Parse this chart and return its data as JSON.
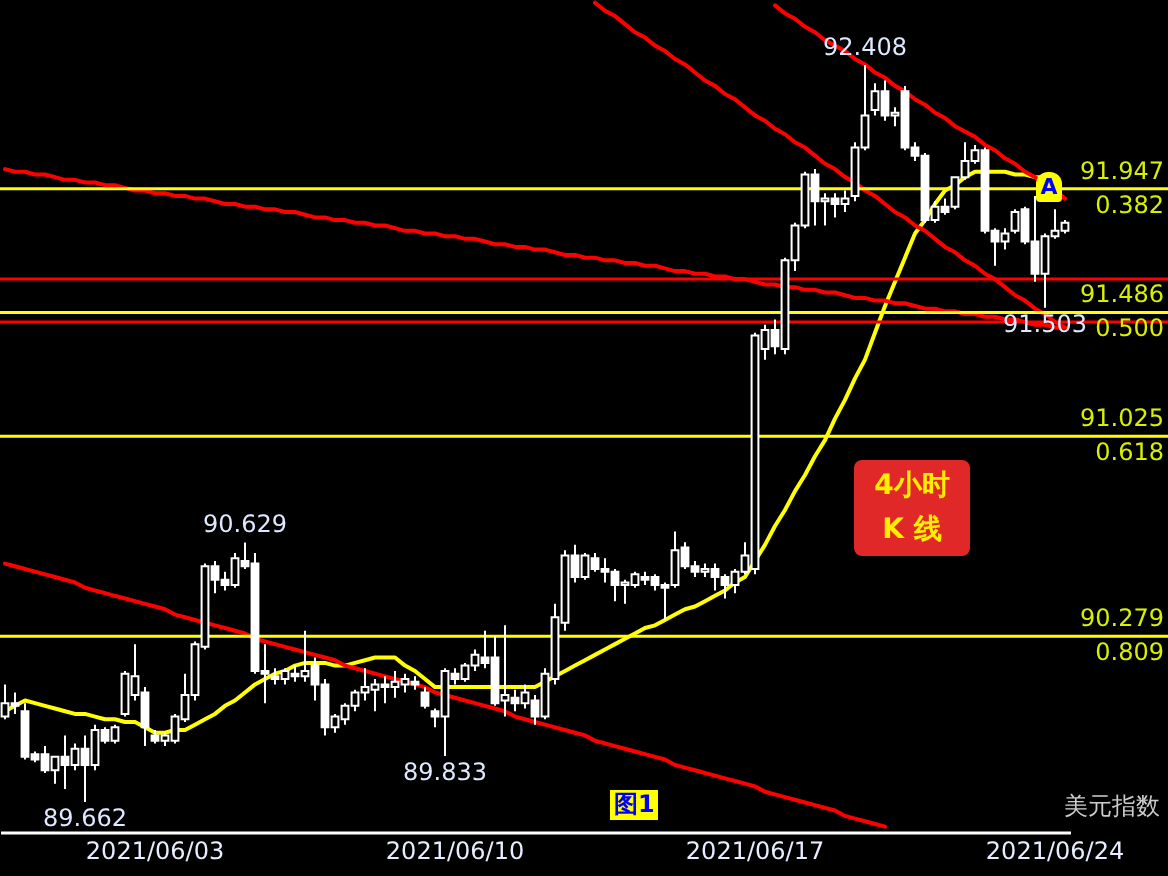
{
  "chart_data": {
    "type": "candlestick",
    "categories": [
      null,
      null,
      null,
      null,
      null,
      null,
      null,
      null,
      null,
      null,
      null,
      null,
      null,
      null,
      null,
      "2021/06/03",
      null,
      null,
      null,
      null,
      null,
      null,
      null,
      null,
      null,
      null,
      null,
      null,
      null,
      null,
      null,
      null,
      null,
      null,
      null,
      null,
      null,
      null,
      null,
      null,
      null,
      null,
      null,
      null,
      null,
      "2021/06/10",
      null,
      null,
      null,
      null,
      null,
      null,
      null,
      null,
      null,
      null,
      null,
      null,
      null,
      null,
      null,
      null,
      null,
      null,
      null,
      null,
      null,
      null,
      null,
      null,
      null,
      null,
      null,
      null,
      null,
      "2021/06/17",
      null,
      null,
      null,
      null,
      null,
      null,
      null,
      null,
      null,
      null,
      null,
      null,
      null,
      null,
      null,
      null,
      null,
      null,
      null,
      null,
      null,
      null,
      null,
      null,
      null,
      null,
      null,
      null,
      null,
      "2021/06/24",
      null
    ],
    "ohlc": [
      [
        89.98,
        90.1,
        89.97,
        90.03
      ],
      [
        90.03,
        90.07,
        89.99,
        90.02
      ],
      [
        90.0,
        90.03,
        89.82,
        89.83
      ],
      [
        89.84,
        89.85,
        89.81,
        89.82
      ],
      [
        89.84,
        89.87,
        89.77,
        89.78
      ],
      [
        89.78,
        89.83,
        89.73,
        89.83
      ],
      [
        89.83,
        89.91,
        89.71,
        89.8
      ],
      [
        89.8,
        89.88,
        89.78,
        89.86
      ],
      [
        89.86,
        89.91,
        89.662,
        89.8
      ],
      [
        89.8,
        89.95,
        89.78,
        89.93
      ],
      [
        89.93,
        89.94,
        89.88,
        89.89
      ],
      [
        89.89,
        89.95,
        89.88,
        89.94
      ],
      [
        89.99,
        90.15,
        89.98,
        90.14
      ],
      [
        90.06,
        90.25,
        90.04,
        90.13
      ],
      [
        90.07,
        90.09,
        89.87,
        89.94
      ],
      [
        89.91,
        89.93,
        89.88,
        89.89
      ],
      [
        89.89,
        89.92,
        89.87,
        89.91
      ],
      [
        89.89,
        89.99,
        89.88,
        89.98
      ],
      [
        89.97,
        90.14,
        89.96,
        90.06
      ],
      [
        90.06,
        90.26,
        90.04,
        90.25
      ],
      [
        90.24,
        90.55,
        90.23,
        90.54
      ],
      [
        90.54,
        90.56,
        90.44,
        90.49
      ],
      [
        90.49,
        90.52,
        90.45,
        90.47
      ],
      [
        90.47,
        90.59,
        90.46,
        90.57
      ],
      [
        90.56,
        90.629,
        90.53,
        90.54
      ],
      [
        90.55,
        90.59,
        90.14,
        90.15
      ],
      [
        90.15,
        90.25,
        90.03,
        90.14
      ],
      [
        90.13,
        90.16,
        90.1,
        90.12
      ],
      [
        90.12,
        90.16,
        90.1,
        90.15
      ],
      [
        90.14,
        90.17,
        90.11,
        90.13
      ],
      [
        90.13,
        90.3,
        90.11,
        90.15
      ],
      [
        90.17,
        90.2,
        90.04,
        90.1
      ],
      [
        90.1,
        90.12,
        89.91,
        89.94
      ],
      [
        89.94,
        89.99,
        89.92,
        89.98
      ],
      [
        89.97,
        90.03,
        89.95,
        90.02
      ],
      [
        90.02,
        90.08,
        90.0,
        90.07
      ],
      [
        90.07,
        90.16,
        90.04,
        90.09
      ],
      [
        90.08,
        90.12,
        90.0,
        90.1
      ],
      [
        90.1,
        90.13,
        90.03,
        90.09
      ],
      [
        90.09,
        90.15,
        90.05,
        90.11
      ],
      [
        90.1,
        90.14,
        90.07,
        90.12
      ],
      [
        90.11,
        90.13,
        90.08,
        90.1
      ],
      [
        90.07,
        90.09,
        90.01,
        90.02
      ],
      [
        90.0,
        90.01,
        89.94,
        89.98
      ],
      [
        89.98,
        90.16,
        89.833,
        90.15
      ],
      [
        90.14,
        90.16,
        90.1,
        90.12
      ],
      [
        90.12,
        90.18,
        90.11,
        90.17
      ],
      [
        90.17,
        90.23,
        90.15,
        90.21
      ],
      [
        90.2,
        90.3,
        90.16,
        90.18
      ],
      [
        90.2,
        90.28,
        90.02,
        90.03
      ],
      [
        90.04,
        90.32,
        89.98,
        90.06
      ],
      [
        90.05,
        90.08,
        90.0,
        90.03
      ],
      [
        90.03,
        90.1,
        90.01,
        90.07
      ],
      [
        90.04,
        90.06,
        89.95,
        89.98
      ],
      [
        89.98,
        90.16,
        89.97,
        90.14
      ],
      [
        90.12,
        90.4,
        90.1,
        90.35
      ],
      [
        90.33,
        90.6,
        90.3,
        90.58
      ],
      [
        90.58,
        90.62,
        90.48,
        90.5
      ],
      [
        90.5,
        90.59,
        90.49,
        90.58
      ],
      [
        90.57,
        90.59,
        90.52,
        90.53
      ],
      [
        90.53,
        90.57,
        90.48,
        90.52
      ],
      [
        90.52,
        90.53,
        90.41,
        90.47
      ],
      [
        90.47,
        90.49,
        90.4,
        90.48
      ],
      [
        90.47,
        90.52,
        90.46,
        90.51
      ],
      [
        90.5,
        90.52,
        90.47,
        90.49
      ],
      [
        90.5,
        90.51,
        90.45,
        90.47
      ],
      [
        90.47,
        90.48,
        90.34,
        90.46
      ],
      [
        90.47,
        90.67,
        90.46,
        90.6
      ],
      [
        90.61,
        90.63,
        90.53,
        90.54
      ],
      [
        90.54,
        90.56,
        90.5,
        90.52
      ],
      [
        90.52,
        90.55,
        90.5,
        90.53
      ],
      [
        90.53,
        90.55,
        90.45,
        90.5
      ],
      [
        90.5,
        90.51,
        90.42,
        90.47
      ],
      [
        90.47,
        90.53,
        90.44,
        90.52
      ],
      [
        90.52,
        90.63,
        90.51,
        90.58
      ],
      [
        90.53,
        91.41,
        90.51,
        91.4
      ],
      [
        91.35,
        91.44,
        91.31,
        91.42
      ],
      [
        91.42,
        91.46,
        91.33,
        91.36
      ],
      [
        91.35,
        91.69,
        91.33,
        91.68
      ],
      [
        91.68,
        91.82,
        91.64,
        91.81
      ],
      [
        91.81,
        92.01,
        91.8,
        92.0
      ],
      [
        92.0,
        92.02,
        91.81,
        91.9
      ],
      [
        91.9,
        91.93,
        91.81,
        91.91
      ],
      [
        91.91,
        91.93,
        91.84,
        91.89
      ],
      [
        91.89,
        91.94,
        91.86,
        91.91
      ],
      [
        91.92,
        92.12,
        91.9,
        92.1
      ],
      [
        92.1,
        92.408,
        92.09,
        92.22
      ],
      [
        92.24,
        92.34,
        92.22,
        92.31
      ],
      [
        92.31,
        92.35,
        92.2,
        92.22
      ],
      [
        92.22,
        92.25,
        92.18,
        92.23
      ],
      [
        92.31,
        92.33,
        92.09,
        92.1
      ],
      [
        92.1,
        92.12,
        92.05,
        92.07
      ],
      [
        92.07,
        92.08,
        91.82,
        91.83
      ],
      [
        91.83,
        91.9,
        91.82,
        91.88
      ],
      [
        91.88,
        91.91,
        91.85,
        91.86
      ],
      [
        91.88,
        91.99,
        91.87,
        91.99
      ],
      [
        91.99,
        92.12,
        91.98,
        92.05
      ],
      [
        92.05,
        92.11,
        92.04,
        92.09
      ],
      [
        92.09,
        92.1,
        91.78,
        91.79
      ],
      [
        91.79,
        91.8,
        91.66,
        91.75
      ],
      [
        91.75,
        91.8,
        91.72,
        91.78
      ],
      [
        91.79,
        91.87,
        91.78,
        91.86
      ],
      [
        91.87,
        91.88,
        91.74,
        91.75
      ],
      [
        91.75,
        91.92,
        91.6,
        91.63
      ],
      [
        91.63,
        91.78,
        91.503,
        91.77
      ],
      [
        91.77,
        91.87,
        91.76,
        91.79
      ],
      [
        91.79,
        91.83,
        91.78,
        91.82
      ]
    ],
    "series": [
      {
        "type": "line",
        "color": "#ffff00",
        "values": [
          90.0,
          90.02,
          90.04,
          90.03,
          90.02,
          90.01,
          90.0,
          89.99,
          89.99,
          89.98,
          89.97,
          89.97,
          89.96,
          89.96,
          89.94,
          89.92,
          89.92,
          89.93,
          89.93,
          89.95,
          89.97,
          89.99,
          90.02,
          90.04,
          90.07,
          90.1,
          90.12,
          90.14,
          90.15,
          90.17,
          90.18,
          90.18,
          90.18,
          90.17,
          90.17,
          90.18,
          90.19,
          90.2,
          90.2,
          90.2,
          90.17,
          90.15,
          90.12,
          90.09,
          90.09,
          90.09,
          90.09,
          90.09,
          90.09,
          90.09,
          90.09,
          90.09,
          90.09,
          90.09,
          90.11,
          90.13,
          90.15,
          90.17,
          90.19,
          90.21,
          90.23,
          90.25,
          90.27,
          90.29,
          90.31,
          90.32,
          90.34,
          90.36,
          90.38,
          90.39,
          90.41,
          90.43,
          90.45,
          90.48,
          90.5,
          90.56,
          90.62,
          90.69,
          90.75,
          90.82,
          90.88,
          90.95,
          91.01,
          91.09,
          91.16,
          91.24,
          91.31,
          91.41,
          91.51,
          91.6,
          91.69,
          91.78,
          91.83,
          91.89,
          91.94,
          91.96,
          91.99,
          92.01,
          92.01,
          92.01,
          92.01,
          92.0,
          92.0,
          91.99,
          91.99,
          91.98,
          null
        ]
      },
      {
        "type": "line",
        "color": "#ff0000",
        "values": [
          null,
          null,
          null,
          null,
          null,
          null,
          null,
          null,
          null,
          null,
          null,
          null,
          null,
          null,
          null,
          null,
          null,
          null,
          null,
          null,
          null,
          null,
          null,
          null,
          null,
          null,
          null,
          null,
          null,
          null,
          null,
          null,
          null,
          null,
          null,
          null,
          null,
          null,
          null,
          null,
          null,
          null,
          null,
          null,
          null,
          null,
          null,
          null,
          null,
          null,
          null,
          null,
          null,
          null,
          null,
          null,
          null,
          null,
          null,
          null,
          null,
          null,
          null,
          null,
          null,
          null,
          null,
          null,
          null,
          null,
          null,
          null,
          null,
          null,
          null,
          null,
          null,
          92.63,
          92.6,
          92.58,
          92.55,
          92.53,
          92.5,
          92.48,
          92.46,
          92.43,
          92.41,
          92.38,
          92.36,
          92.33,
          92.31,
          92.28,
          92.26,
          92.23,
          92.21,
          92.18,
          92.16,
          92.14,
          92.11,
          92.09,
          92.06,
          92.04,
          92.01,
          91.99,
          91.96,
          91.94,
          91.91
        ]
      },
      {
        "type": "line",
        "color": "#ff0000",
        "values": [
          null,
          null,
          null,
          null,
          null,
          null,
          null,
          null,
          null,
          null,
          null,
          null,
          null,
          null,
          null,
          null,
          null,
          null,
          null,
          null,
          null,
          null,
          null,
          null,
          null,
          null,
          null,
          null,
          null,
          null,
          null,
          null,
          null,
          null,
          null,
          null,
          null,
          null,
          null,
          null,
          null,
          null,
          null,
          null,
          null,
          null,
          null,
          null,
          null,
          null,
          null,
          null,
          null,
          null,
          null,
          null,
          null,
          null,
          null,
          92.64,
          92.61,
          92.59,
          92.56,
          92.53,
          92.51,
          92.48,
          92.46,
          92.43,
          92.41,
          92.38,
          92.35,
          92.33,
          92.3,
          92.28,
          92.25,
          92.22,
          92.2,
          92.17,
          92.15,
          92.12,
          92.1,
          92.07,
          92.04,
          92.02,
          91.99,
          91.97,
          91.94,
          91.92,
          91.89,
          91.86,
          91.84,
          91.81,
          91.79,
          91.76,
          91.73,
          91.71,
          91.68,
          91.66,
          91.63,
          91.61,
          91.58,
          91.55,
          91.53,
          91.5,
          91.48,
          91.45,
          91.43
        ]
      },
      {
        "type": "line",
        "color": "#ff0000",
        "values": [
          92.02,
          92.01,
          92.01,
          92.0,
          92.0,
          91.99,
          91.98,
          91.98,
          91.97,
          91.97,
          91.96,
          91.96,
          91.95,
          91.94,
          91.94,
          91.93,
          91.93,
          91.92,
          91.92,
          91.91,
          91.91,
          91.9,
          91.89,
          91.89,
          91.88,
          91.88,
          91.87,
          91.87,
          91.86,
          91.86,
          91.85,
          91.84,
          91.84,
          91.83,
          91.83,
          91.82,
          91.82,
          91.81,
          91.81,
          91.8,
          91.79,
          91.79,
          91.78,
          91.78,
          91.77,
          91.77,
          91.76,
          91.76,
          91.75,
          91.74,
          91.74,
          91.73,
          91.73,
          91.72,
          91.72,
          91.71,
          91.7,
          91.7,
          91.69,
          91.69,
          91.68,
          91.68,
          91.67,
          91.67,
          91.66,
          91.66,
          91.65,
          91.64,
          91.64,
          91.63,
          91.63,
          91.62,
          91.62,
          91.61,
          91.61,
          91.6,
          91.59,
          91.59,
          91.58,
          91.58,
          91.57,
          91.57,
          91.56,
          91.56,
          91.55,
          91.54,
          91.54,
          91.53,
          91.53,
          91.52,
          91.52,
          91.51,
          91.5,
          91.5,
          91.49,
          91.49,
          91.48,
          91.48,
          91.47,
          91.47,
          91.46,
          91.46,
          91.45,
          91.44,
          91.44,
          91.43,
          91.43
        ]
      },
      {
        "type": "line",
        "color": "#ff0000",
        "values": [
          90.55,
          90.54,
          90.53,
          90.52,
          90.51,
          90.5,
          90.49,
          90.48,
          90.46,
          90.45,
          90.44,
          90.43,
          90.42,
          90.41,
          90.4,
          90.39,
          90.38,
          90.36,
          90.35,
          90.34,
          90.33,
          90.32,
          90.31,
          90.3,
          90.29,
          90.27,
          90.26,
          90.25,
          90.24,
          90.23,
          90.22,
          90.21,
          90.2,
          90.19,
          90.17,
          90.16,
          90.15,
          90.14,
          90.13,
          90.12,
          90.11,
          90.1,
          90.09,
          90.07,
          90.06,
          90.05,
          90.04,
          90.03,
          90.02,
          90.01,
          90.0,
          89.98,
          89.97,
          89.96,
          89.95,
          89.94,
          89.93,
          89.92,
          89.91,
          89.89,
          89.88,
          89.87,
          89.86,
          89.85,
          89.84,
          89.83,
          89.82,
          89.8,
          89.79,
          89.78,
          89.77,
          89.76,
          89.75,
          89.74,
          89.73,
          89.72,
          89.7,
          89.69,
          89.68,
          89.67,
          89.66,
          89.65,
          89.64,
          89.63,
          89.61,
          89.6,
          89.59,
          89.58,
          89.57,
          null,
          null,
          null,
          null,
          null,
          null,
          null,
          null,
          null,
          null,
          null,
          null,
          null,
          null,
          null,
          null,
          null,
          null
        ]
      }
    ],
    "ylim": [
      89.55,
      92.65
    ],
    "tick_labels": "x",
    "ref_lines": [
      {
        "axis": "y",
        "value": 91.61,
        "color": "#ff0000"
      },
      {
        "axis": "y",
        "value": 91.45,
        "color": "#ff0000"
      },
      {
        "axis": "y",
        "value": 91.947,
        "label": "91.947",
        "color": "#ffff00"
      },
      {
        "axis": "y",
        "value": 91.486,
        "label": "91.486",
        "color": "#ffff00"
      },
      {
        "axis": "y",
        "value": 91.025,
        "label": "91.025",
        "color": "#ffff00"
      },
      {
        "axis": "y",
        "value": 90.279,
        "label": "90.279",
        "color": "#ffff00"
      }
    ],
    "annotations": [
      {
        "text": "92.408",
        "y": 92.408
      },
      {
        "text": "90.629",
        "y": 90.629
      },
      {
        "text": "89.833",
        "y": 89.833
      },
      {
        "text": "89.662",
        "y": 89.662
      },
      {
        "text": "91.503",
        "y": 91.503
      },
      {
        "text": "0.382",
        "y": 91.947
      },
      {
        "text": "0.500",
        "y": 91.486
      },
      {
        "text": "0.618",
        "y": 91.025
      },
      {
        "text": "0.809",
        "y": 90.279
      },
      "A",
      "4小时",
      "K 线",
      "图1",
      "美元指数"
    ]
  }
}
